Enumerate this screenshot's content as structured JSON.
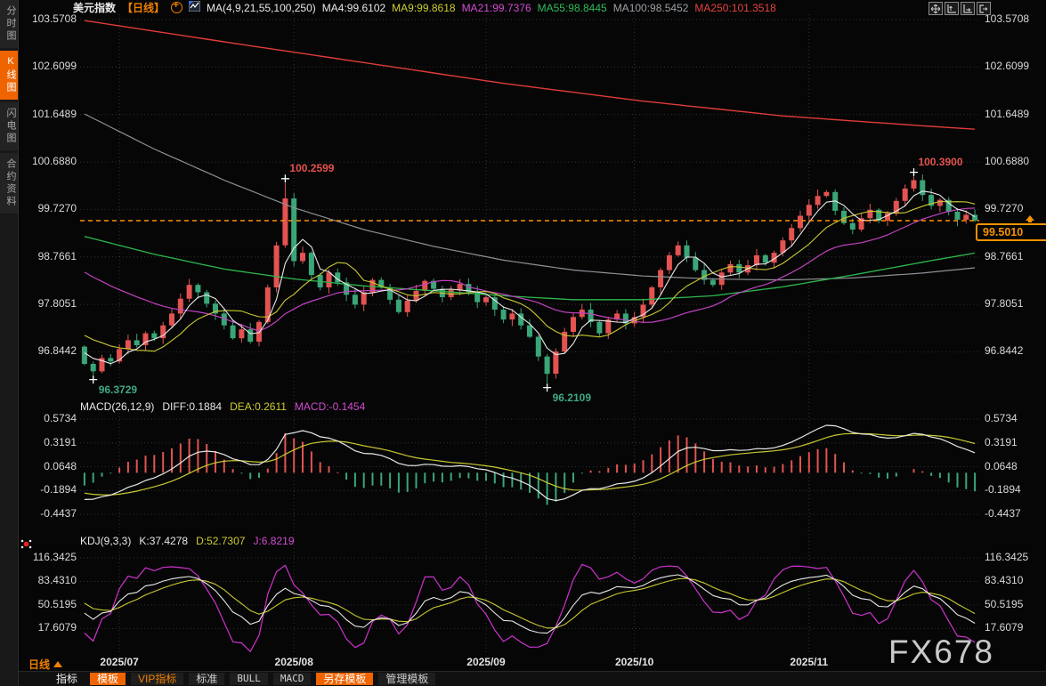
{
  "window": {
    "watermark": "FX678"
  },
  "sidebar": {
    "items": [
      {
        "label": "分时图",
        "active": false
      },
      {
        "label": "K线图",
        "active": true
      },
      {
        "label": "闪电图",
        "active": false
      },
      {
        "label": "合约资料",
        "active": false
      }
    ]
  },
  "header": {
    "title": "美元指数",
    "period_tag": "【日线】",
    "ma_param": "MA(4,9,21,55,100,250)",
    "ma_values": [
      {
        "label": "MA4:99.6102",
        "color": "#e8e8e8"
      },
      {
        "label": "MA9:99.8618",
        "color": "#cdcd35"
      },
      {
        "label": "MA21:99.7376",
        "color": "#d24dd2"
      },
      {
        "label": "MA55:98.8445",
        "color": "#2fbb58"
      },
      {
        "label": "MA100:98.5452",
        "color": "#9aa0a6"
      },
      {
        "label": "MA250:101.3518",
        "color": "#e5443f"
      }
    ]
  },
  "macd_header": {
    "param": "MACD(26,12,9)",
    "diff": "DIFF:0.1884",
    "dea": "DEA:0.2611",
    "macd": "MACD:-0.1454"
  },
  "kdj_header": {
    "param": "KDJ(9,3,3)",
    "k": "K:37.4278",
    "d": "D:52.7307",
    "j": "J:6.8219"
  },
  "price_box": {
    "value": "99.5010"
  },
  "period_selector": {
    "label": "日线"
  },
  "toolbar": {
    "items": [
      {
        "label": "指标",
        "variant": "plain"
      },
      {
        "label": "模板",
        "variant": "active"
      },
      {
        "label": "VIP指标",
        "variant": "vip"
      },
      {
        "label": "标准",
        "variant": "box"
      },
      {
        "label": "BULL",
        "variant": "mono"
      },
      {
        "label": "MACD",
        "variant": "mono"
      },
      {
        "label": "另存模板",
        "variant": "active"
      },
      {
        "label": "管理模板",
        "variant": "box"
      }
    ]
  },
  "chart_data": {
    "type": "candlestick",
    "title": "美元指数 日线 (US Dollar Index, daily)",
    "y_axis": {
      "main": [
        "103.5708",
        "102.6099",
        "101.6489",
        "100.6880",
        "99.7270",
        "98.7661",
        "97.8051",
        "96.8442"
      ],
      "macd": [
        "0.5734",
        "0.3191",
        "0.0648",
        "-0.1894",
        "-0.4437"
      ],
      "kdj": [
        "116.3425",
        "83.4310",
        "50.5195",
        "17.6079"
      ]
    },
    "months": [
      {
        "label": "2025/07",
        "index": 4
      },
      {
        "label": "2025/08",
        "index": 24
      },
      {
        "label": "2025/09",
        "index": 46
      },
      {
        "label": "2025/10",
        "index": 63
      },
      {
        "label": "2025/11",
        "index": 83
      }
    ],
    "first_open": 96.95,
    "closes": [
      96.6,
      96.45,
      96.72,
      96.65,
      96.9,
      97.08,
      96.98,
      97.22,
      97.12,
      97.38,
      97.62,
      97.92,
      98.2,
      98.05,
      97.82,
      97.62,
      97.38,
      97.12,
      97.3,
      97.05,
      97.45,
      98.15,
      99.0,
      99.95,
      98.68,
      98.85,
      98.4,
      98.15,
      98.45,
      98.25,
      98.0,
      97.8,
      98.05,
      98.3,
      98.15,
      97.9,
      97.65,
      97.88,
      98.08,
      98.28,
      98.12,
      97.95,
      98.1,
      98.22,
      98.05,
      97.85,
      97.95,
      97.7,
      97.5,
      97.62,
      97.38,
      97.15,
      96.75,
      96.4,
      96.85,
      97.25,
      97.55,
      97.7,
      97.45,
      97.22,
      97.5,
      97.62,
      97.42,
      97.55,
      97.8,
      98.15,
      98.5,
      98.8,
      99.0,
      98.75,
      98.5,
      98.3,
      98.2,
      98.45,
      98.62,
      98.45,
      98.6,
      98.8,
      98.65,
      98.85,
      99.1,
      99.35,
      99.6,
      99.82,
      100.0,
      100.08,
      99.7,
      99.45,
      99.32,
      99.55,
      99.72,
      99.5,
      99.65,
      99.9,
      100.15,
      100.32,
      100.02,
      99.8,
      99.92,
      99.68,
      99.52,
      99.62,
      99.501
    ],
    "wick_overrides": {
      "1": {
        "low": 96.3729
      },
      "23": {
        "high": 100.2599
      },
      "53": {
        "low": 96.2109
      },
      "95": {
        "high": 100.39
      }
    },
    "annotations": [
      {
        "index": 1,
        "label": "96.3729",
        "type": "low"
      },
      {
        "index": 23,
        "label": "100.2599",
        "type": "high"
      },
      {
        "index": 53,
        "label": "96.2109",
        "type": "low"
      },
      {
        "index": 95,
        "label": "100.3900",
        "type": "high"
      }
    ],
    "current_price": 99.501,
    "ma_seeds": {
      "ma4": 96.9,
      "ma9": 97.25,
      "ma21": 98.55
    },
    "ma55_points": [
      [
        0,
        99.18
      ],
      [
        8,
        98.82
      ],
      [
        16,
        98.52
      ],
      [
        24,
        98.32
      ],
      [
        32,
        98.18
      ],
      [
        40,
        98.08
      ],
      [
        48,
        97.98
      ],
      [
        56,
        97.9
      ],
      [
        64,
        97.9
      ],
      [
        72,
        97.98
      ],
      [
        80,
        98.16
      ],
      [
        88,
        98.4
      ],
      [
        96,
        98.66
      ],
      [
        102,
        98.8445
      ]
    ],
    "ma100_points": [
      [
        0,
        101.66
      ],
      [
        8,
        100.95
      ],
      [
        16,
        100.32
      ],
      [
        24,
        99.76
      ],
      [
        32,
        99.32
      ],
      [
        40,
        98.98
      ],
      [
        48,
        98.7
      ],
      [
        56,
        98.5
      ],
      [
        64,
        98.38
      ],
      [
        72,
        98.32
      ],
      [
        80,
        98.3
      ],
      [
        88,
        98.34
      ],
      [
        96,
        98.44
      ],
      [
        102,
        98.5452
      ]
    ],
    "ma250_points": [
      [
        0,
        103.55
      ],
      [
        16,
        103.12
      ],
      [
        32,
        102.7
      ],
      [
        48,
        102.28
      ],
      [
        64,
        101.92
      ],
      [
        80,
        101.62
      ],
      [
        96,
        101.42
      ],
      [
        102,
        101.3518
      ]
    ],
    "macd_seeds": {
      "ema12": 96.7,
      "ema26": 97.0,
      "dea": -0.2
    },
    "kdj_seeds": {
      "k": 55,
      "d": 60
    },
    "colors": {
      "up": "#e25352",
      "down": "#3aa678",
      "ma4": "#e8e8e8",
      "ma9": "#c9c932",
      "ma21": "#c243c2",
      "ma55": "#2db84d",
      "ma100": "#8c9196",
      "ma250": "#e03c38",
      "diff": "#e8e8e8",
      "dea": "#c9c932",
      "macd_bar_pos": "#e25352",
      "macd_bar_neg": "#3aa678",
      "k": "#e8e8e8",
      "d": "#c9c932",
      "j": "#cc33cc",
      "accent": "#f08000",
      "price_line": "#ff9000",
      "grid": "rgba(170,170,170,0.28)"
    }
  }
}
